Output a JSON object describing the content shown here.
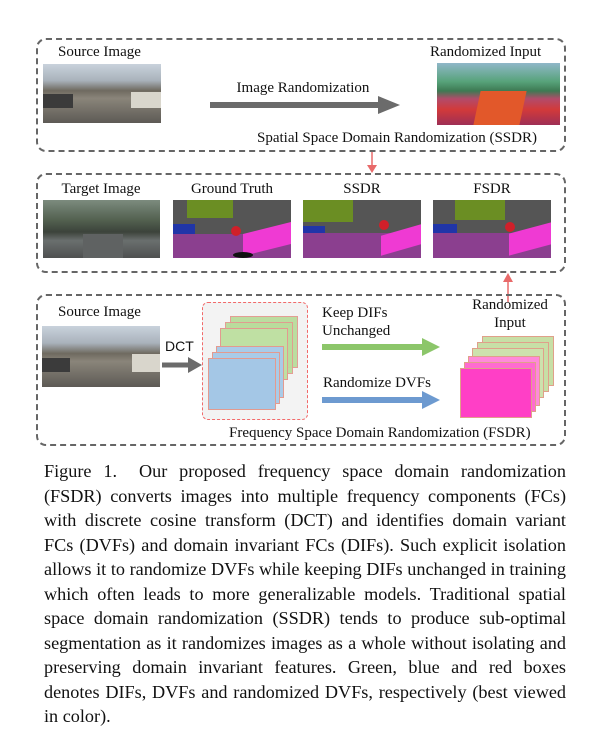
{
  "figure": {
    "ssdr_panel": {
      "source_label": "Source Image",
      "randomized_label": "Randomized Input",
      "arrow_label": "Image Randomization",
      "title": "Spatial Space Domain Randomization (SSDR)"
    },
    "results_panel": {
      "labels": [
        "Target Image",
        "Ground Truth",
        "SSDR",
        "FSDR"
      ]
    },
    "fsdr_panel": {
      "source_label": "Source Image",
      "dct_label": "DCT",
      "keep_label_1": "Keep DIFs",
      "keep_label_2": "Unchanged",
      "randomize_label": "Randomize DVFs",
      "randomized_label_1": "Randomized",
      "randomized_label_2": "Input",
      "title": "Frequency Space  Domain Randomization (FSDR)"
    },
    "colors": {
      "dif_green": "#9cd07c",
      "dvf_blue": "#7eaedc",
      "randomized_pink": "#ff3fc6",
      "arrow_gray": "#6b6b6b",
      "arrow_red": "#e86a6a",
      "seg_road": "#8b3f8f",
      "seg_sidewalk": "#ef3ad3",
      "seg_vegetation": "#6b8e23",
      "seg_car": "#2035a8"
    }
  },
  "caption": {
    "number": "Figure 1.",
    "text": "Our proposed frequency space domain randomization (FSDR) converts images into multiple frequency components (FCs) with discrete cosine transform (DCT) and identifies domain variant FCs (DVFs) and domain invariant FCs (DIFs). Such explicit isolation allows it to randomize DVFs while keeping DIFs unchanged in training which often leads to more generalizable models. Traditional spatial space domain randomization (SSDR) tends to produce sub-optimal segmentation as it randomizes images as a whole without isolating and preserving domain invariant features. Green, blue and red boxes denotes DIFs, DVFs and randomized DVFs, respectively (best viewed in color)."
  }
}
